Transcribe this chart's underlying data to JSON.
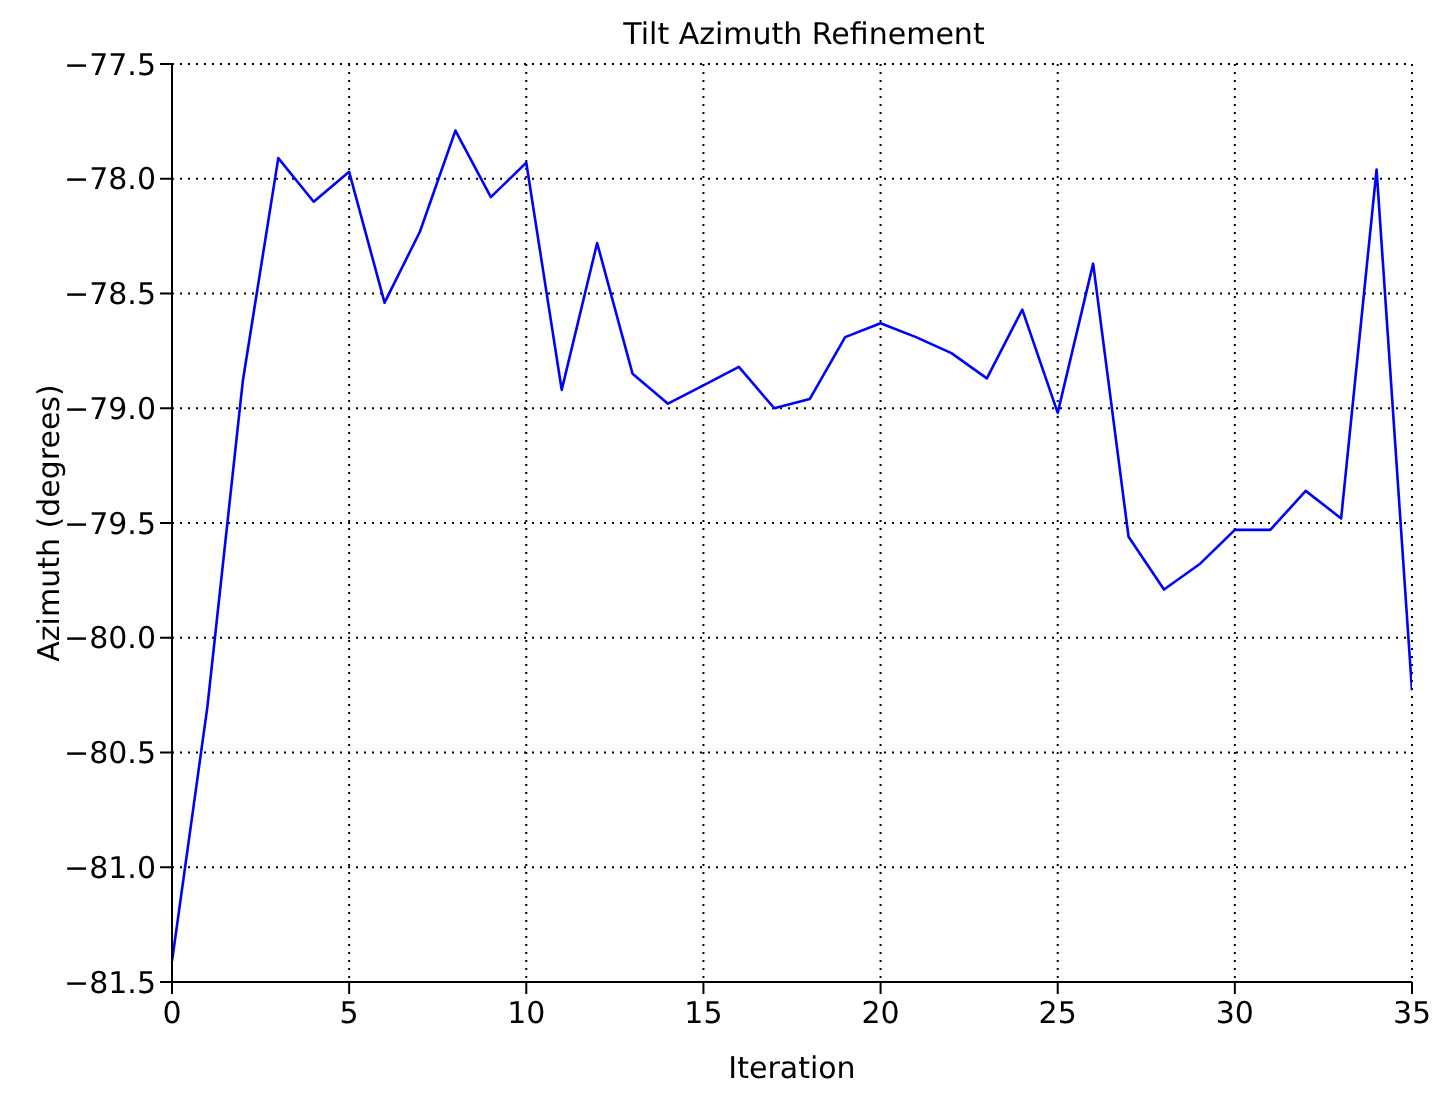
{
  "chart_data": {
    "type": "line",
    "title": "Tilt Azimuth Refinement",
    "xlabel": "Iteration",
    "ylabel": "Azimuth (degrees)",
    "x": [
      0,
      1,
      2,
      3,
      4,
      5,
      6,
      7,
      8,
      9,
      10,
      11,
      12,
      13,
      14,
      15,
      16,
      17,
      18,
      19,
      20,
      21,
      22,
      23,
      24,
      25,
      26,
      27,
      28,
      29,
      30,
      31,
      32,
      33,
      34,
      35
    ],
    "series": [
      {
        "color": "#0000ff",
        "values": [
          -81.41,
          -80.3,
          -78.88,
          -77.91,
          -78.1,
          -77.97,
          -78.54,
          -78.23,
          -77.79,
          -78.08,
          -77.93,
          -78.92,
          -78.28,
          -78.85,
          -78.98,
          -78.9,
          -78.82,
          -79.0,
          -78.96,
          -78.69,
          -78.63,
          -78.69,
          -78.76,
          -78.87,
          -78.57,
          -79.02,
          -78.37,
          -79.56,
          -79.79,
          -79.68,
          -79.53,
          -79.53,
          -79.36,
          -79.48,
          -77.96,
          -80.23
        ]
      }
    ],
    "xlim": [
      0,
      35
    ],
    "xticks": [
      0,
      5,
      10,
      15,
      20,
      25,
      30,
      35
    ],
    "ylim": [
      -81.5,
      -77.5
    ],
    "yticks": [
      {
        "value": -81.5,
        "label": "−81.5"
      },
      {
        "value": -81.0,
        "label": "−81.0"
      },
      {
        "value": -80.5,
        "label": "−80.5"
      },
      {
        "value": -80.0,
        "label": "−80.0"
      },
      {
        "value": -79.5,
        "label": "−79.5"
      },
      {
        "value": -79.0,
        "label": "−79.0"
      },
      {
        "value": -78.5,
        "label": "−78.5"
      },
      {
        "value": -78.0,
        "label": "−78.0"
      },
      {
        "value": -77.5,
        "label": "−77.5"
      }
    ],
    "grid": true,
    "marker": "none",
    "line_style": "solid",
    "legend": false
  }
}
